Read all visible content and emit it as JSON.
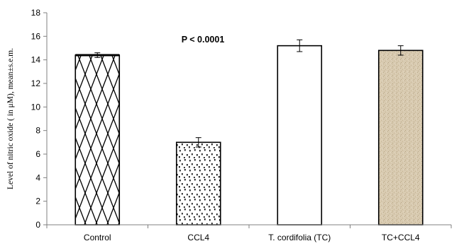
{
  "chart_data": {
    "type": "bar",
    "categories": [
      "Control",
      "CCL4",
      "T. cordifolia (TC)",
      "TC+CCL4"
    ],
    "values": [
      14.4,
      7.0,
      15.2,
      14.8
    ],
    "errors": [
      0.2,
      0.4,
      0.5,
      0.4
    ],
    "ylabel": "Level of nitric oxide ( in μM), mean±s.e.m.",
    "xlabel": "",
    "ylim": [
      0,
      18
    ],
    "yticks": [
      0,
      2,
      4,
      6,
      8,
      10,
      12,
      14,
      16,
      18
    ],
    "annotation": "P < 0.0001",
    "grid": false,
    "legend": "none",
    "fills": [
      "crosshatch-diamond",
      "dotted",
      "white",
      "tan-textured"
    ],
    "colors": {
      "axis": "#808080",
      "bar_edge": "#000000",
      "tan": "#d8cab0"
    }
  }
}
